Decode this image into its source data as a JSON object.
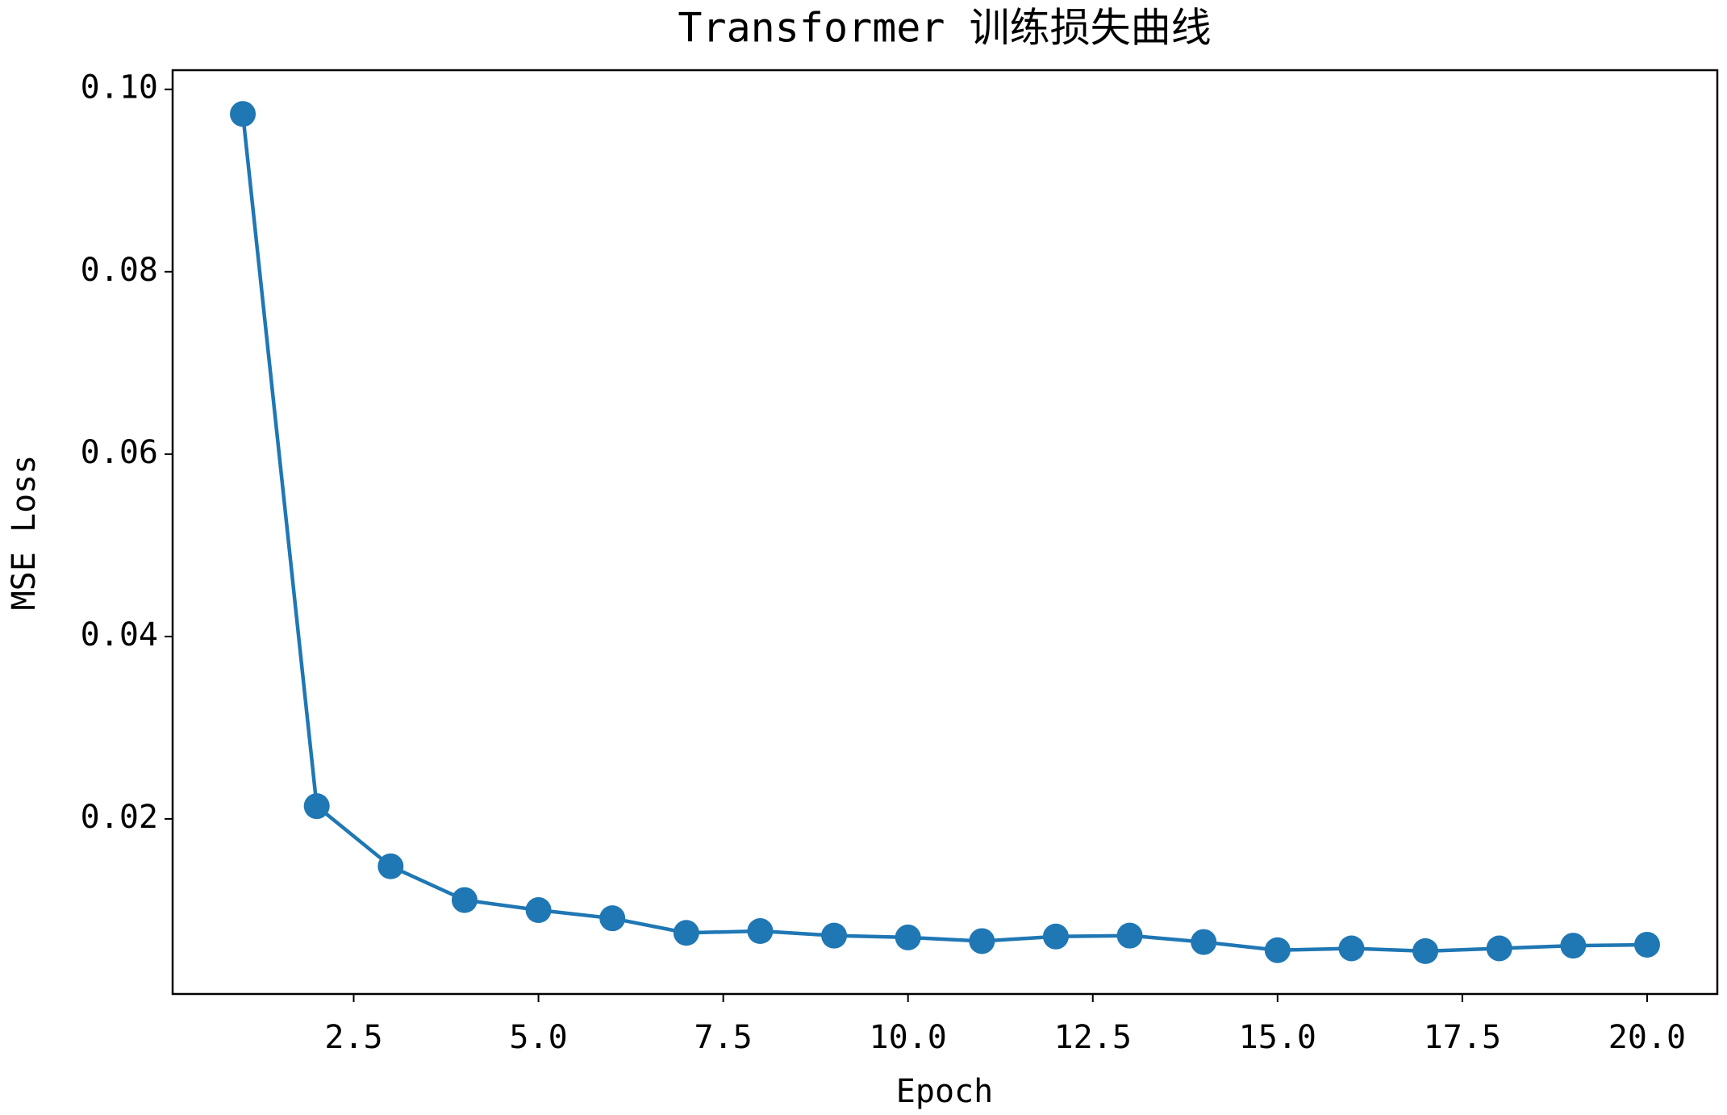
{
  "chart_data": {
    "type": "line",
    "title": "Transformer 训练损失曲线",
    "x_label": "Epoch",
    "y_label": "MSE Loss",
    "x": [
      1,
      2,
      3,
      4,
      5,
      6,
      7,
      8,
      9,
      10,
      11,
      12,
      13,
      14,
      15,
      16,
      17,
      18,
      19,
      20
    ],
    "series": [
      {
        "name": "Loss",
        "color": "#1f77b4",
        "values": [
          0.0973,
          0.0214,
          0.0148,
          0.0111,
          0.01,
          0.0091,
          0.0075,
          0.0077,
          0.0072,
          0.007,
          0.0066,
          0.0071,
          0.0072,
          0.0065,
          0.0056,
          0.0058,
          0.0055,
          0.0058,
          0.0061,
          0.0062
        ]
      }
    ],
    "xlim": [
      0.05,
      20.95
    ],
    "xticks": [
      2.5,
      {
        "value": 5,
        "label": "5.0"
      },
      7.5,
      {
        "value": 10,
        "label": "10.0"
      },
      12.5,
      {
        "value": 15,
        "label": "15.0"
      },
      17.5,
      {
        "value": 20,
        "label": "20.0"
      }
    ],
    "ylim": [
      0.0008,
      0.1021
    ],
    "yticks": [
      0.02,
      0.04,
      0.06,
      0.08,
      {
        "value": 0.1,
        "label": "0.10"
      }
    ],
    "grid": false
  }
}
